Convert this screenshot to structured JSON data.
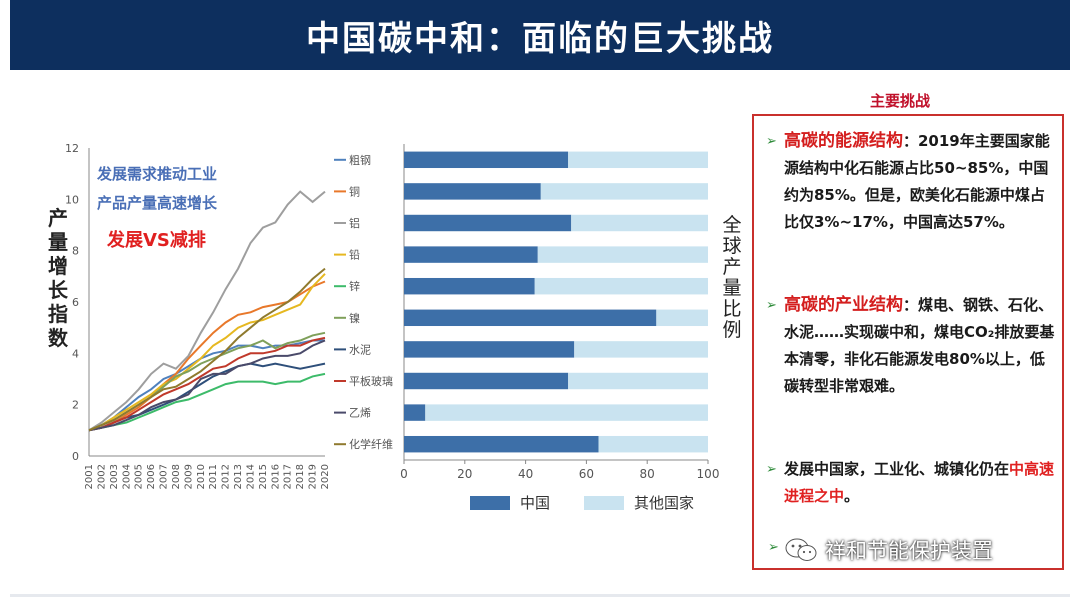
{
  "title": "中国碳中和：面临的巨大挑战",
  "chart_data": [
    {
      "type": "line",
      "ylabel": "产量增长指数",
      "x": [
        2001,
        2002,
        2003,
        2004,
        2005,
        2006,
        2007,
        2008,
        2009,
        2010,
        2011,
        2012,
        2013,
        2014,
        2015,
        2016,
        2017,
        2018,
        2019,
        2020
      ],
      "ylim": [
        0,
        12
      ],
      "yticks": [
        0,
        2,
        4,
        6,
        8,
        10,
        12
      ],
      "annotations": [
        "发展需求推动工业",
        "产品产量高速增长",
        "发展VS减排"
      ],
      "series": [
        {
          "name": "粗钢",
          "color": "#4f81bd",
          "values": [
            1,
            1.2,
            1.5,
            1.9,
            2.3,
            2.6,
            3.0,
            3.2,
            3.5,
            3.8,
            4.0,
            4.1,
            4.3,
            4.3,
            4.2,
            4.3,
            4.3,
            4.4,
            4.5,
            4.5
          ]
        },
        {
          "name": "铜",
          "color": "#e8782a",
          "values": [
            1,
            1.1,
            1.3,
            1.6,
            1.9,
            2.3,
            2.8,
            3.2,
            3.8,
            4.3,
            4.8,
            5.2,
            5.5,
            5.6,
            5.8,
            5.9,
            6.0,
            6.3,
            6.6,
            6.8
          ]
        },
        {
          "name": "铝",
          "color": "#9e9e9e",
          "values": [
            1,
            1.3,
            1.7,
            2.1,
            2.6,
            3.2,
            3.6,
            3.4,
            3.9,
            4.8,
            5.6,
            6.5,
            7.3,
            8.3,
            8.9,
            9.1,
            9.8,
            10.3,
            9.9,
            10.3
          ]
        },
        {
          "name": "铅",
          "color": "#e6b820",
          "values": [
            1,
            1.2,
            1.5,
            1.8,
            2.1,
            2.4,
            2.8,
            3.0,
            3.4,
            3.8,
            4.3,
            4.6,
            5.0,
            5.2,
            5.3,
            5.5,
            5.7,
            5.9,
            6.6,
            7.1
          ]
        },
        {
          "name": "锌",
          "color": "#3dbb6a",
          "values": [
            1,
            1.1,
            1.2,
            1.3,
            1.5,
            1.7,
            1.9,
            2.1,
            2.2,
            2.4,
            2.6,
            2.8,
            2.9,
            2.9,
            2.9,
            2.8,
            2.9,
            2.9,
            3.1,
            3.2
          ]
        },
        {
          "name": "镍",
          "color": "#7fa05a",
          "values": [
            1,
            1.2,
            1.4,
            1.7,
            2.0,
            2.3,
            2.7,
            3.1,
            3.3,
            3.6,
            3.8,
            4.0,
            4.2,
            4.3,
            4.5,
            4.2,
            4.4,
            4.5,
            4.7,
            4.8
          ]
        },
        {
          "name": "水泥",
          "color": "#2e4f7a",
          "values": [
            1,
            1.1,
            1.3,
            1.5,
            1.6,
            1.8,
            2.0,
            2.2,
            2.5,
            2.8,
            3.1,
            3.3,
            3.5,
            3.6,
            3.5,
            3.6,
            3.5,
            3.4,
            3.5,
            3.6
          ]
        },
        {
          "name": "平板玻璃",
          "color": "#c0392b",
          "values": [
            1,
            1.1,
            1.3,
            1.5,
            1.8,
            2.1,
            2.4,
            2.6,
            2.8,
            3.1,
            3.4,
            3.5,
            3.8,
            4.0,
            4.0,
            4.1,
            4.3,
            4.3,
            4.5,
            4.6
          ]
        },
        {
          "name": "乙烯",
          "color": "#4a4a6a",
          "values": [
            1,
            1.1,
            1.2,
            1.4,
            1.6,
            1.9,
            2.1,
            2.2,
            2.4,
            3.0,
            3.2,
            3.2,
            3.5,
            3.6,
            3.8,
            3.9,
            3.9,
            4.0,
            4.3,
            4.5
          ]
        },
        {
          "name": "化学纤维",
          "color": "#8f7a2e",
          "values": [
            1,
            1.2,
            1.4,
            1.7,
            2.0,
            2.3,
            2.6,
            2.7,
            3.0,
            3.3,
            3.7,
            4.1,
            4.6,
            5.0,
            5.4,
            5.7,
            6.0,
            6.4,
            6.9,
            7.3
          ]
        }
      ]
    },
    {
      "type": "bar",
      "stacked": true,
      "orientation": "horizontal",
      "ylabel": "全球产量比例",
      "xlim": [
        0,
        100
      ],
      "xticks": [
        0,
        20,
        40,
        60,
        80,
        100
      ],
      "legend_position": "bottom",
      "categories": [
        "粗钢",
        "铜",
        "铝",
        "铅",
        "锌",
        "镍",
        "水泥",
        "平板玻璃",
        "乙烯",
        "化学纤维"
      ],
      "series": [
        {
          "name": "中国",
          "color": "#3d6fa8",
          "values": [
            54,
            45,
            55,
            44,
            43,
            83,
            56,
            54,
            7,
            64
          ]
        },
        {
          "name": "其他国家",
          "color": "#c9e3f0",
          "values": [
            46,
            55,
            45,
            56,
            57,
            17,
            44,
            46,
            93,
            36
          ]
        }
      ]
    }
  ],
  "panel": {
    "title": "主要挑战",
    "items": [
      {
        "head": "高碳的能源结构",
        "body": "：2019年主要国家能源结构中化石能源占比50~85%，中国约为85%。但是，欧美化石能源中煤占比仅3%~17%，中国高达57%。"
      },
      {
        "head": "高碳的产业结构",
        "body": "：煤电、钢铁、石化、水泥……实现碳中和，煤电CO₂排放要基本清零，非化石能源发电80%以上，低碳转型非常艰难。"
      },
      {
        "pre": "发展中国家，工业化、城镇化仍在",
        "emph": "中高速进程之中",
        "post": "。"
      }
    ]
  },
  "watermark": "祥和节能保护装置"
}
